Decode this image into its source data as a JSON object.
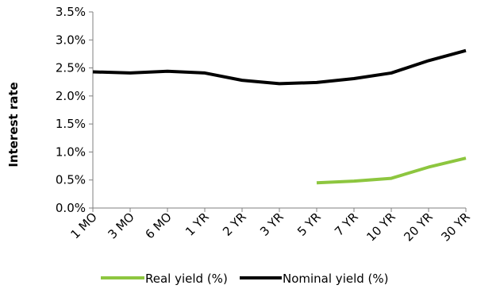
{
  "chart_data": {
    "type": "line",
    "title": "",
    "xlabel": "",
    "ylabel": "Interest rate",
    "categories": [
      "1 MO",
      "3 MO",
      "6 MO",
      "1 YR",
      "2 YR",
      "3 YR",
      "5 YR",
      "7 YR",
      "10 YR",
      "20 YR",
      "30 YR"
    ],
    "ylim": [
      0,
      3.5
    ],
    "yticks": [
      0,
      0.5,
      1.0,
      1.5,
      2.0,
      2.5,
      3.0,
      3.5
    ],
    "ytick_labels": [
      "0.0%",
      "0.5%",
      "1.0%",
      "1.5%",
      "2.0%",
      "2.5%",
      "3.0%",
      "3.5%"
    ],
    "grid": false,
    "legend_position": "bottom",
    "series": [
      {
        "name": "Real yield (%)",
        "color": "#8dc63f",
        "values": [
          null,
          null,
          null,
          null,
          null,
          null,
          0.45,
          0.48,
          0.53,
          0.73,
          0.89
        ]
      },
      {
        "name": "Nominal yield (%)",
        "color": "#000000",
        "values": [
          2.43,
          2.41,
          2.44,
          2.41,
          2.28,
          2.22,
          2.24,
          2.31,
          2.41,
          2.63,
          2.81
        ]
      }
    ]
  }
}
